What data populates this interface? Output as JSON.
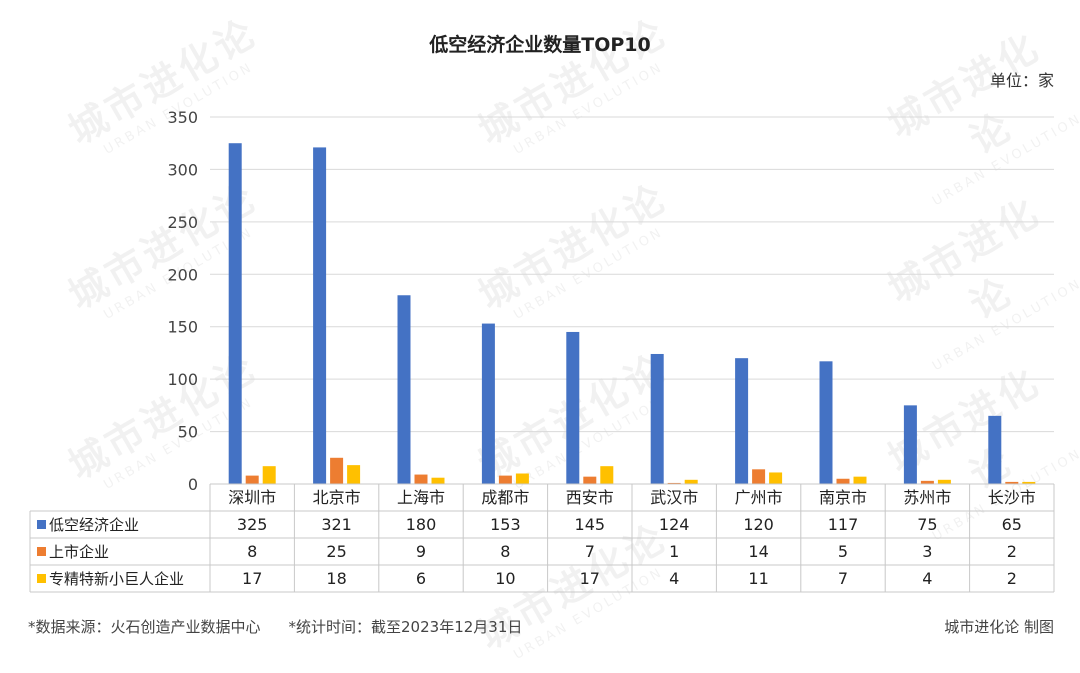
{
  "chart_data": {
    "type": "bar",
    "title": "低空经济企业数量TOP10",
    "unit_label": "单位：家",
    "categories": [
      "深圳市",
      "北京市",
      "上海市",
      "成都市",
      "西安市",
      "武汉市",
      "广州市",
      "南京市",
      "苏州市",
      "长沙市"
    ],
    "series": [
      {
        "name": "低空经济企业",
        "color": "#4472C4",
        "values": [
          325,
          321,
          180,
          153,
          145,
          124,
          120,
          117,
          75,
          65
        ]
      },
      {
        "name": "上市企业",
        "color": "#ED7D31",
        "values": [
          8,
          25,
          9,
          8,
          7,
          1,
          14,
          5,
          3,
          2
        ]
      },
      {
        "name": "专精特新小巨人企业",
        "color": "#FFC000",
        "values": [
          17,
          18,
          6,
          10,
          17,
          4,
          11,
          7,
          4,
          2
        ]
      }
    ],
    "ylim": [
      0,
      350
    ],
    "yticks": [
      0,
      50,
      100,
      150,
      200,
      250,
      300,
      350
    ],
    "grid": true,
    "legend_placement": "data-table"
  },
  "footer": {
    "source": "*数据来源：火石创造产业数据中心",
    "stat_time": "*统计时间：截至2023年12月31日",
    "credit": "城市进化论 制图"
  },
  "watermark": {
    "cn": "城市进化论",
    "en": "URBAN EVOLUTION"
  }
}
